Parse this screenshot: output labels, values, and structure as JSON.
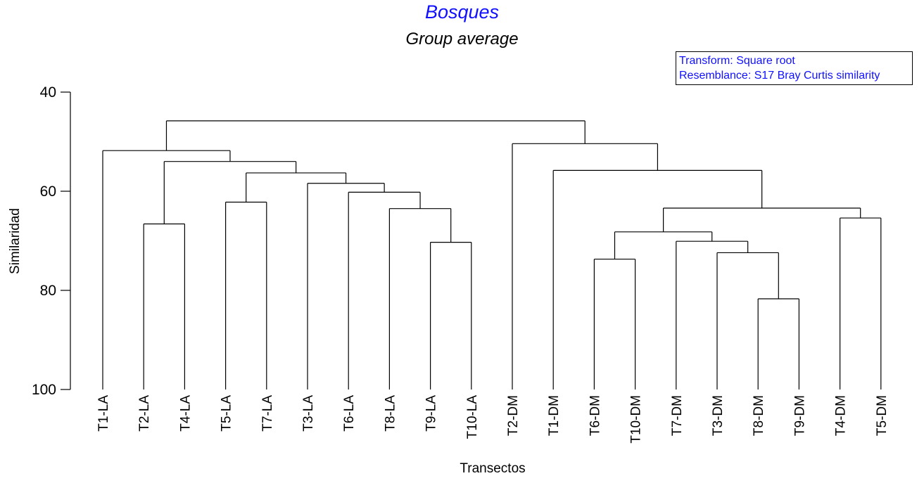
{
  "chart_data": {
    "type": "dendrogram",
    "title": "Bosques",
    "subtitle": "Group average",
    "xlabel": "Transectos",
    "ylabel": "Similaridad",
    "ylim": [
      40,
      100
    ],
    "yticks": [
      40,
      60,
      80,
      100
    ],
    "legend": {
      "placement": "top-right",
      "lines": [
        "Transform: Square root",
        "Resemblance: S17 Bray Curtis similarity"
      ]
    },
    "leaves": [
      "T1-LA",
      "T2-LA",
      "T4-LA",
      "T5-LA",
      "T7-LA",
      "T3-LA",
      "T6-LA",
      "T8-LA",
      "T9-LA",
      "T10-LA",
      "T2-DM",
      "T1-DM",
      "T6-DM",
      "T10-DM",
      "T7-DM",
      "T3-DM",
      "T8-DM",
      "T9-DM",
      "T4-DM",
      "T5-DM"
    ],
    "merges": [
      {
        "a": "T9-LA",
        "b": "T10-LA",
        "similarity": 70.3
      },
      {
        "a": "T8-LA",
        "b": "T9-LA+T10-LA",
        "similarity": 63.5
      },
      {
        "a": "T6-LA",
        "b": "T8-LA..T10-LA",
        "similarity": 60.2
      },
      {
        "a": "T3-LA",
        "b": "T6-LA..T10-LA",
        "similarity": 58.4
      },
      {
        "a": "T5-LA",
        "b": "T7-LA",
        "similarity": 62.2
      },
      {
        "a": "T5-LA+T7-LA",
        "b": "T3-LA..T10-LA",
        "similarity": 56.3
      },
      {
        "a": "T2-LA",
        "b": "T4-LA",
        "similarity": 66.6
      },
      {
        "a": "T2-LA+T4-LA",
        "b": "T5-LA..T10-LA",
        "similarity": 54.0
      },
      {
        "a": "T1-LA",
        "b": "T2-LA..T10-LA",
        "similarity": 51.8
      },
      {
        "a": "T8-DM",
        "b": "T9-DM",
        "similarity": 81.7
      },
      {
        "a": "T3-DM",
        "b": "T8-DM+T9-DM",
        "similarity": 72.4
      },
      {
        "a": "T7-DM",
        "b": "T3-DM..T9-DM",
        "similarity": 70.1
      },
      {
        "a": "T6-DM",
        "b": "T10-DM",
        "similarity": 73.7
      },
      {
        "a": "T6-DM+T10-DM",
        "b": "T7-DM..T9-DM",
        "similarity": 68.2
      },
      {
        "a": "T4-DM",
        "b": "T5-DM",
        "similarity": 65.4
      },
      {
        "a": "T6-DM..T9-DM",
        "b": "T4-DM+T5-DM",
        "similarity": 63.4
      },
      {
        "a": "T1-DM",
        "b": "T6-DM..T5-DM",
        "similarity": 55.8
      },
      {
        "a": "T2-DM",
        "b": "T1-DM..T5-DM",
        "similarity": 50.4
      },
      {
        "a": "LA cluster",
        "b": "DM cluster",
        "similarity": 45.8
      }
    ]
  }
}
